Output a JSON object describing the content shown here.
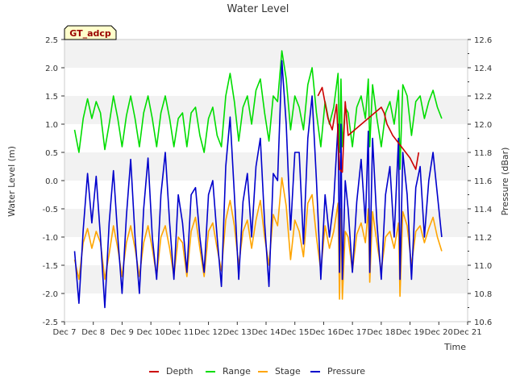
{
  "chart_data": {
    "type": "line",
    "title": "Water Level",
    "xlabel": "Time",
    "ylabel": "Water Level (m)",
    "y2label": "Pressure (dBar)",
    "badge": "GT_adcp",
    "xlim": [
      7,
      21
    ],
    "ylim": [
      -2.5,
      2.5
    ],
    "y2lim": [
      10.6,
      12.6
    ],
    "x_ticks": [
      7,
      8,
      9,
      10,
      11,
      12,
      13,
      14,
      15,
      16,
      17,
      18,
      19,
      20,
      21
    ],
    "x_tick_labels": [
      "Dec 7",
      "Dec 8",
      "Dec 9",
      "Dec 10",
      "Dec 11",
      "Dec 12",
      "Dec 13",
      "Dec 14",
      "Dec 15",
      "Dec 16",
      "Dec 17",
      "Dec 18",
      "Dec 19",
      "Dec 20",
      "Dec 21"
    ],
    "y_ticks": [
      -2.5,
      -2.0,
      -1.5,
      -1.0,
      -0.5,
      0.0,
      0.5,
      1.0,
      1.5,
      2.0,
      2.5
    ],
    "y_tick_labels": [
      "-2.5",
      "-2.0",
      "-1.5",
      "-1.0",
      "-0.5",
      "0.0",
      "0.5",
      "1.0",
      "1.5",
      "2.0",
      "2.5"
    ],
    "y2_ticks": [
      10.6,
      10.8,
      11.0,
      11.2,
      11.4,
      11.6,
      11.8,
      12.0,
      12.2,
      12.4,
      12.6
    ],
    "y2_tick_labels": [
      "10.6",
      "10.8",
      "11.0",
      "11.2",
      "11.4",
      "11.6",
      "11.8",
      "12.0",
      "12.2",
      "12.4",
      "12.6"
    ],
    "legend_position": "bottom-center",
    "grid": "horizontal bands",
    "series": [
      {
        "name": "Depth",
        "color": "#cc0000",
        "axis": "left",
        "x": [
          7.35,
          15.8,
          15.95,
          16.15,
          16.3,
          16.45,
          16.55,
          16.65,
          16.75,
          16.85,
          18.0,
          18.1,
          18.2,
          18.3,
          18.4,
          19.0,
          19.1,
          19.2,
          19.3
        ],
        "y": [
          null,
          1.5,
          1.65,
          1.1,
          0.9,
          1.35,
          0.2,
          0.15,
          1.4,
          0.8,
          1.3,
          1.2,
          1.0,
          0.9,
          0.8,
          0.4,
          0.3,
          0.2,
          0.5
        ]
      },
      {
        "name": "Range",
        "color": "#00dd00",
        "axis": "left",
        "x": [
          7.35,
          7.5,
          7.65,
          7.8,
          7.95,
          8.1,
          8.25,
          8.4,
          8.55,
          8.7,
          8.85,
          9.0,
          9.15,
          9.3,
          9.45,
          9.6,
          9.75,
          9.9,
          10.05,
          10.2,
          10.35,
          10.5,
          10.65,
          10.8,
          10.95,
          11.1,
          11.25,
          11.4,
          11.55,
          11.7,
          11.85,
          12.0,
          12.15,
          12.3,
          12.45,
          12.6,
          12.75,
          12.9,
          13.05,
          13.2,
          13.35,
          13.5,
          13.65,
          13.8,
          13.95,
          14.1,
          14.25,
          14.4,
          14.55,
          14.7,
          14.85,
          15.0,
          15.15,
          15.3,
          15.45,
          15.6,
          15.75,
          15.9,
          16.05,
          16.2,
          16.35,
          16.5,
          16.55,
          16.6,
          16.65,
          16.75,
          16.85,
          17.0,
          17.15,
          17.3,
          17.45,
          17.55,
          17.6,
          17.7,
          17.85,
          18.0,
          18.15,
          18.3,
          18.45,
          18.6,
          18.65,
          18.75,
          18.9,
          19.05,
          19.2,
          19.35,
          19.5,
          19.65,
          19.8,
          19.95,
          20.1
        ],
        "y": [
          0.9,
          0.5,
          1.1,
          1.45,
          1.1,
          1.4,
          1.2,
          0.55,
          1.0,
          1.5,
          1.1,
          0.6,
          1.15,
          1.5,
          1.1,
          0.6,
          1.2,
          1.5,
          1.1,
          0.6,
          1.2,
          1.5,
          1.1,
          0.6,
          1.1,
          1.2,
          0.6,
          1.2,
          1.3,
          0.8,
          0.5,
          1.1,
          1.3,
          0.8,
          0.6,
          1.5,
          1.9,
          1.4,
          0.7,
          1.3,
          1.5,
          1.0,
          1.6,
          1.8,
          1.2,
          0.7,
          1.5,
          1.4,
          2.3,
          1.8,
          0.9,
          1.5,
          1.3,
          0.9,
          1.7,
          2.0,
          1.2,
          0.6,
          1.4,
          1.0,
          1.3,
          1.9,
          0.5,
          1.8,
          0.6,
          1.3,
          1.2,
          0.6,
          1.3,
          1.5,
          1.1,
          1.8,
          0.6,
          1.7,
          1.1,
          0.6,
          1.2,
          1.4,
          1.0,
          1.6,
          0.2,
          1.7,
          1.5,
          0.8,
          1.4,
          1.5,
          1.1,
          1.4,
          1.6,
          1.3,
          1.1
        ]
      },
      {
        "name": "Stage",
        "color": "#ffa500",
        "axis": "left",
        "x": [
          7.35,
          7.5,
          7.65,
          7.8,
          7.95,
          8.1,
          8.25,
          8.4,
          8.55,
          8.7,
          8.85,
          9.0,
          9.15,
          9.3,
          9.45,
          9.6,
          9.75,
          9.9,
          10.05,
          10.2,
          10.35,
          10.5,
          10.65,
          10.8,
          10.95,
          11.1,
          11.25,
          11.4,
          11.55,
          11.7,
          11.85,
          12.0,
          12.15,
          12.3,
          12.45,
          12.6,
          12.75,
          12.9,
          13.05,
          13.2,
          13.35,
          13.5,
          13.65,
          13.8,
          13.95,
          14.1,
          14.25,
          14.4,
          14.55,
          14.7,
          14.85,
          15.0,
          15.15,
          15.3,
          15.45,
          15.6,
          15.75,
          15.9,
          16.05,
          16.2,
          16.35,
          16.5,
          16.55,
          16.6,
          16.65,
          16.75,
          16.85,
          17.0,
          17.15,
          17.3,
          17.45,
          17.55,
          17.6,
          17.7,
          17.85,
          18.0,
          18.15,
          18.3,
          18.45,
          18.6,
          18.65,
          18.75,
          18.9,
          19.05,
          19.2,
          19.35,
          19.5,
          19.65,
          19.8,
          19.95,
          20.1
        ],
        "y": [
          -1.4,
          -1.75,
          -1.1,
          -0.85,
          -1.2,
          -0.9,
          -1.1,
          -1.75,
          -1.3,
          -0.8,
          -1.2,
          -1.7,
          -1.1,
          -0.8,
          -1.2,
          -1.7,
          -1.1,
          -0.8,
          -1.2,
          -1.7,
          -1.0,
          -0.8,
          -1.2,
          -1.7,
          -1.0,
          -1.1,
          -1.7,
          -0.9,
          -0.65,
          -1.2,
          -1.7,
          -0.9,
          -0.75,
          -1.2,
          -1.6,
          -0.7,
          -0.35,
          -0.8,
          -1.5,
          -0.9,
          -0.7,
          -1.2,
          -0.7,
          -0.35,
          -1.0,
          -1.5,
          -0.6,
          -0.8,
          0.05,
          -0.45,
          -1.4,
          -0.7,
          -0.9,
          -1.35,
          -0.4,
          -0.25,
          -1.0,
          -1.6,
          -0.8,
          -1.2,
          -0.9,
          -0.4,
          -2.1,
          -0.5,
          -2.1,
          -0.9,
          -1.0,
          -1.6,
          -0.95,
          -0.75,
          -1.1,
          -0.5,
          -1.8,
          -0.55,
          -1.1,
          -1.6,
          -1.0,
          -0.9,
          -1.2,
          -0.75,
          -2.05,
          -0.55,
          -0.8,
          -1.5,
          -0.9,
          -0.8,
          -1.1,
          -0.85,
          -0.65,
          -1.0,
          -1.25
        ]
      },
      {
        "name": "Pressure",
        "color": "#0000cc",
        "axis": "right",
        "x": [
          7.35,
          7.5,
          7.65,
          7.8,
          7.95,
          8.1,
          8.25,
          8.4,
          8.55,
          8.7,
          8.85,
          9.0,
          9.15,
          9.3,
          9.45,
          9.6,
          9.75,
          9.9,
          10.05,
          10.2,
          10.35,
          10.5,
          10.65,
          10.8,
          10.95,
          11.1,
          11.25,
          11.4,
          11.55,
          11.7,
          11.85,
          12.0,
          12.15,
          12.3,
          12.45,
          12.6,
          12.75,
          12.9,
          13.05,
          13.2,
          13.35,
          13.5,
          13.65,
          13.8,
          13.95,
          14.1,
          14.25,
          14.4,
          14.55,
          14.7,
          14.85,
          15.0,
          15.15,
          15.3,
          15.45,
          15.6,
          15.75,
          15.9,
          16.05,
          16.2,
          16.35,
          16.5,
          16.55,
          16.6,
          16.65,
          16.75,
          16.85,
          17.0,
          17.15,
          17.3,
          17.45,
          17.55,
          17.6,
          17.7,
          17.85,
          18.0,
          18.15,
          18.3,
          18.45,
          18.6,
          18.65,
          18.75,
          18.9,
          19.05,
          19.2,
          19.35,
          19.5,
          19.65,
          19.8,
          19.95,
          20.1
        ],
        "y": [
          11.1,
          10.73,
          11.25,
          11.65,
          11.3,
          11.63,
          11.2,
          10.7,
          11.3,
          11.67,
          11.2,
          10.8,
          11.35,
          11.75,
          11.2,
          10.8,
          11.4,
          11.76,
          11.2,
          10.9,
          11.5,
          11.8,
          11.3,
          10.9,
          11.5,
          11.3,
          10.95,
          11.5,
          11.55,
          11.2,
          10.95,
          11.5,
          11.6,
          11.2,
          10.85,
          11.7,
          12.05,
          11.5,
          10.9,
          11.45,
          11.65,
          11.2,
          11.7,
          11.9,
          11.3,
          10.85,
          11.65,
          11.6,
          12.45,
          12.0,
          11.25,
          11.8,
          11.8,
          11.15,
          11.9,
          12.2,
          11.6,
          10.9,
          11.5,
          11.2,
          11.45,
          12.0,
          10.95,
          12.0,
          10.9,
          11.6,
          11.4,
          10.95,
          11.45,
          11.75,
          11.3,
          11.95,
          10.95,
          11.9,
          11.3,
          10.9,
          11.5,
          11.7,
          11.2,
          11.9,
          10.9,
          11.8,
          11.5,
          10.9,
          11.55,
          11.7,
          11.2,
          11.6,
          11.8,
          11.5,
          11.2
        ]
      }
    ]
  }
}
